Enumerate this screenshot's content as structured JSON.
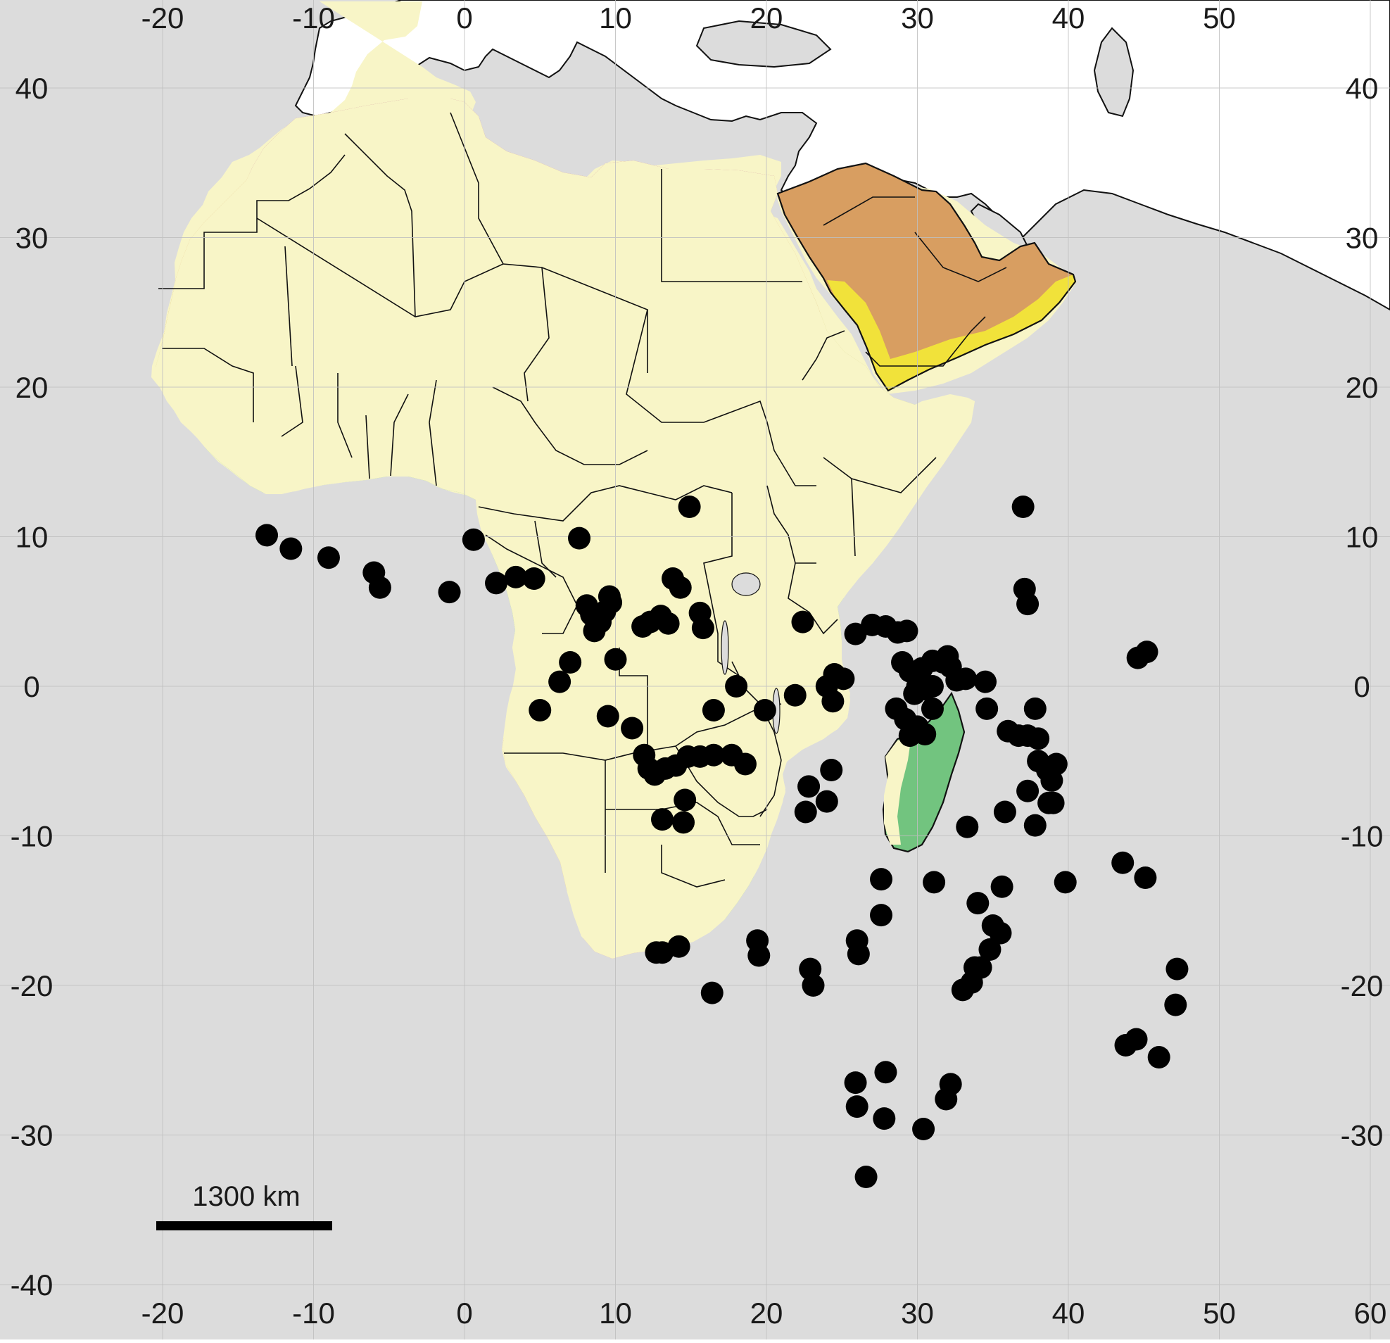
{
  "map": {
    "projection": "equirectangular-approx",
    "lon_range": [
      -25,
      60
    ],
    "lat_range": [
      -42,
      46
    ],
    "x_ticks": [
      -20,
      -10,
      0,
      10,
      20,
      30,
      40,
      50,
      60
    ],
    "y_ticks": [
      -40,
      -30,
      -20,
      -10,
      0,
      10,
      20,
      30,
      40
    ],
    "top_x_ticks": [
      -20,
      -10,
      0,
      10,
      20,
      30,
      40,
      50
    ],
    "top_x_labels": [
      "-20",
      "-10",
      "0",
      "10",
      "20",
      "30",
      "40",
      "50"
    ],
    "right_y_ticks": [
      -30,
      -20,
      -10,
      0,
      10,
      20,
      30,
      40
    ],
    "right_y_labels": [
      "-30",
      "-20",
      "-10",
      "0",
      "10",
      "20",
      "30",
      "40"
    ],
    "bottom_x_labels": [
      "-20",
      "-10",
      "0",
      "10",
      "20",
      "30",
      "40",
      "50",
      "60"
    ],
    "left_y_labels": [
      "-40",
      "-30",
      "-20",
      "-10",
      "0",
      "10",
      "20",
      "30",
      "40"
    ],
    "grid": true,
    "colors": {
      "ocean": "#dcdcdc",
      "land_outside": "#ffffff",
      "border": "#111111",
      "grid": "#bfbfbf",
      "mediterranean_zone": "#c176b6",
      "desert_zone": "#d89e61",
      "sahel_zone": "#c4c366",
      "savanna_zone": "#f8f5c7",
      "tropical_forest_zone": "#72c47f",
      "arabian_coast_zone": "#f1e23a",
      "point": "#000000"
    },
    "scale_bar": {
      "label": "1300 km"
    },
    "points": [
      [
        -13.1,
        10.1
      ],
      [
        -11.5,
        9.2
      ],
      [
        -9.0,
        8.6
      ],
      [
        -6.0,
        7.6
      ],
      [
        -5.6,
        6.6
      ],
      [
        -1.0,
        6.3
      ],
      [
        0.6,
        9.8
      ],
      [
        2.1,
        6.9
      ],
      [
        3.4,
        7.3
      ],
      [
        4.6,
        7.2
      ],
      [
        7.6,
        9.9
      ],
      [
        8.1,
        5.4
      ],
      [
        8.4,
        4.8
      ],
      [
        8.6,
        3.7
      ],
      [
        9.3,
        5.0
      ],
      [
        9.7,
        5.6
      ],
      [
        9.6,
        6.0
      ],
      [
        9.0,
        4.3
      ],
      [
        7.0,
        1.6
      ],
      [
        6.3,
        0.3
      ],
      [
        5.0,
        -1.6
      ],
      [
        10.0,
        1.8
      ],
      [
        9.5,
        -2.0
      ],
      [
        11.1,
        -2.8
      ],
      [
        11.8,
        4.0
      ],
      [
        12.3,
        4.3
      ],
      [
        13.0,
        4.7
      ],
      [
        13.5,
        4.2
      ],
      [
        13.8,
        7.2
      ],
      [
        14.3,
        6.6
      ],
      [
        14.9,
        12.0
      ],
      [
        15.6,
        4.9
      ],
      [
        15.8,
        3.9
      ],
      [
        11.9,
        -4.6
      ],
      [
        12.2,
        -5.5
      ],
      [
        12.6,
        -5.9
      ],
      [
        13.3,
        -5.5
      ],
      [
        14.0,
        -5.3
      ],
      [
        14.8,
        -4.7
      ],
      [
        15.6,
        -4.7
      ],
      [
        16.5,
        -4.6
      ],
      [
        17.7,
        -4.6
      ],
      [
        18.6,
        -5.2
      ],
      [
        16.5,
        -1.6
      ],
      [
        18.0,
        0.0
      ],
      [
        19.9,
        -1.6
      ],
      [
        21.9,
        -0.6
      ],
      [
        22.4,
        4.3
      ],
      [
        22.8,
        -6.7
      ],
      [
        22.6,
        -8.4
      ],
      [
        24.0,
        -7.7
      ],
      [
        24.3,
        -5.6
      ],
      [
        24.0,
        0.0
      ],
      [
        24.5,
        0.8
      ],
      [
        25.1,
        0.5
      ],
      [
        24.4,
        -1.0
      ],
      [
        25.9,
        3.5
      ],
      [
        27.0,
        4.1
      ],
      [
        27.9,
        4.0
      ],
      [
        28.7,
        3.6
      ],
      [
        29.3,
        3.7
      ],
      [
        29.0,
        1.6
      ],
      [
        29.5,
        1.0
      ],
      [
        30.3,
        1.2
      ],
      [
        30.0,
        0.0
      ],
      [
        31.0,
        1.7
      ],
      [
        31.7,
        1.6
      ],
      [
        32.0,
        2.0
      ],
      [
        32.2,
        1.3
      ],
      [
        32.6,
        0.4
      ],
      [
        33.2,
        0.5
      ],
      [
        29.8,
        -0.5
      ],
      [
        30.5,
        -0.2
      ],
      [
        31.0,
        0.0
      ],
      [
        28.6,
        -1.5
      ],
      [
        29.2,
        -2.2
      ],
      [
        30.0,
        -2.7
      ],
      [
        30.5,
        -3.2
      ],
      [
        29.5,
        -3.3
      ],
      [
        31.0,
        -1.5
      ],
      [
        34.5,
        0.3
      ],
      [
        34.6,
        -1.5
      ],
      [
        36.0,
        -3.0
      ],
      [
        36.7,
        -3.3
      ],
      [
        37.3,
        -3.3
      ],
      [
        38.0,
        -3.5
      ],
      [
        37.8,
        -1.5
      ],
      [
        38.0,
        -5.0
      ],
      [
        38.6,
        -5.6
      ],
      [
        39.2,
        -5.2
      ],
      [
        38.9,
        -6.3
      ],
      [
        37.3,
        -7.0
      ],
      [
        38.7,
        -7.8
      ],
      [
        39.0,
        -7.8
      ],
      [
        35.8,
        -8.4
      ],
      [
        37.8,
        -9.3
      ],
      [
        33.3,
        -9.4
      ],
      [
        37.0,
        12.0
      ],
      [
        37.1,
        6.5
      ],
      [
        37.3,
        5.5
      ],
      [
        44.6,
        1.9
      ],
      [
        45.2,
        2.3
      ],
      [
        14.6,
        -7.6
      ],
      [
        13.1,
        -8.9
      ],
      [
        14.5,
        -9.1
      ],
      [
        27.6,
        -12.9
      ],
      [
        27.6,
        -15.3
      ],
      [
        31.1,
        -13.1
      ],
      [
        35.6,
        -13.4
      ],
      [
        34.0,
        -14.5
      ],
      [
        35.0,
        -16.0
      ],
      [
        35.5,
        -16.5
      ],
      [
        34.8,
        -17.6
      ],
      [
        33.8,
        -18.8
      ],
      [
        34.2,
        -18.8
      ],
      [
        33.6,
        -19.8
      ],
      [
        33.0,
        -20.3
      ],
      [
        26.0,
        -17.0
      ],
      [
        26.1,
        -17.9
      ],
      [
        19.4,
        -17.0
      ],
      [
        19.5,
        -18.0
      ],
      [
        22.9,
        -18.9
      ],
      [
        23.1,
        -20.0
      ],
      [
        13.1,
        -17.8
      ],
      [
        12.7,
        -17.8
      ],
      [
        14.2,
        -17.4
      ],
      [
        16.4,
        -20.5
      ],
      [
        25.9,
        -26.5
      ],
      [
        27.9,
        -25.8
      ],
      [
        26.0,
        -28.1
      ],
      [
        27.8,
        -28.9
      ],
      [
        32.2,
        -26.6
      ],
      [
        31.9,
        -27.6
      ],
      [
        30.4,
        -29.6
      ],
      [
        26.6,
        -32.8
      ],
      [
        39.8,
        -13.1
      ],
      [
        43.6,
        -11.8
      ],
      [
        45.1,
        -12.8
      ],
      [
        47.2,
        -18.9
      ],
      [
        47.1,
        -21.3
      ],
      [
        43.8,
        -24.0
      ],
      [
        44.5,
        -23.6
      ],
      [
        46.0,
        -24.8
      ]
    ]
  }
}
